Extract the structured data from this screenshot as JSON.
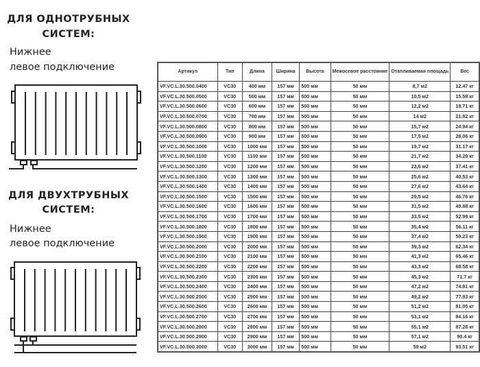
{
  "sections": [
    {
      "title_line1": "ДЛЯ ОДНОТРУБНЫХ",
      "title_line2": "СИСТЕМ:",
      "sub_line1": "Нижнее",
      "sub_line2": "левое подключение"
    },
    {
      "title_line1": "ДЛЯ ДВУХТРУБНЫХ",
      "title_line2": "СИСТЕМ:",
      "sub_line1": "Нижнее",
      "sub_line2": "левое подключение"
    }
  ],
  "table": {
    "headers": [
      "Артикул",
      "Тип",
      "Длина",
      "Ширина",
      "Высота",
      "Межосевое расстояние",
      "Отапливаемая площадь",
      "Вес"
    ],
    "rows": [
      [
        "VF.VC.L.30.500.0400",
        "VC30",
        "400 мм",
        "157 мм",
        "500 мм",
        "50 мм",
        "8,7 м2",
        "12.47 кг"
      ],
      [
        "VF.VC.L.30.500.0500",
        "VC30",
        "500 мм",
        "157 мм",
        "500 мм",
        "50 мм",
        "10,5 м2",
        "15.59 кг"
      ],
      [
        "VF.VC.L.30.500.0600",
        "VC30",
        "600 мм",
        "157 мм",
        "500 мм",
        "50 мм",
        "12,2 м2",
        "18.71 кг"
      ],
      [
        "VF.VC.L.30.500.0700",
        "VC30",
        "700 мм",
        "157 мм",
        "500 мм",
        "50 мм",
        "14 м2",
        "21.82 кг"
      ],
      [
        "VF.VC.L.30.500.0800",
        "VC30",
        "800 мм",
        "157 мм",
        "500 мм",
        "50 мм",
        "15,7 м2",
        "24.94 кг"
      ],
      [
        "VF.VC.L.30.500.0900",
        "VC30",
        "900 мм",
        "157 мм",
        "500 мм",
        "50 мм",
        "17,5 м2",
        "28.06 кг"
      ],
      [
        "VF.VC.L.30.500.1000",
        "VC30",
        "1000 мм",
        "157 мм",
        "500 мм",
        "50 мм",
        "19,7 м2",
        "31.17 кг"
      ],
      [
        "VF.VC.L.30.500.1100",
        "VC30",
        "1100 мм",
        "157 мм",
        "500 мм",
        "50 мм",
        "21,7 м2",
        "34.29 кг"
      ],
      [
        "VF.VC.L.30.500.1200",
        "VC30",
        "1200 мм",
        "157 мм",
        "500 мм",
        "50 мм",
        "23,6 м2",
        "37.41 кг"
      ],
      [
        "VF.VC.L.30.500.1300",
        "VC30",
        "1300 мм",
        "157 мм",
        "500 мм",
        "50 мм",
        "25,6 м2",
        "40.53 кг"
      ],
      [
        "VF.VC.L.30.500.1400",
        "VC30",
        "1400 мм",
        "157 мм",
        "500 мм",
        "50 мм",
        "27,6 м2",
        "43.64 кг"
      ],
      [
        "VF.VC.L.30.500.1500",
        "VC30",
        "1500 мм",
        "157 мм",
        "500 мм",
        "50 мм",
        "29,5 м2",
        "46.76 кг"
      ],
      [
        "VF.VC.L.30.500.1600",
        "VC30",
        "1600 мм",
        "157 мм",
        "500 мм",
        "50 мм",
        "31,5 м2",
        "49.88 кг"
      ],
      [
        "VF.VC.L.30.500.1700",
        "VC30",
        "1700 мм",
        "157 мм",
        "500 мм",
        "50 мм",
        "33,5 м2",
        "52.99 кг"
      ],
      [
        "VF.VC.L.30.500.1800",
        "VC30",
        "1800 мм",
        "157 мм",
        "500 мм",
        "50 мм",
        "35,4 м2",
        "56.11 кг"
      ],
      [
        "VF.VC.L.30.500.1900",
        "VC30",
        "1900 мм",
        "157 мм",
        "500 мм",
        "50 мм",
        "37,4 м2",
        "59.23 кг"
      ],
      [
        "VF.VC.L.30.500.2000",
        "VC30",
        "2000 мм",
        "157 мм",
        "500 мм",
        "50 мм",
        "39,3 м2",
        "62.34 кг"
      ],
      [
        "VF.VC.L.30.500.2100",
        "VC30",
        "2100 мм",
        "157 мм",
        "500 мм",
        "50 мм",
        "41,3 м2",
        "65.46 кг"
      ],
      [
        "VF.VC.L.30.500.2200",
        "VC30",
        "2200 мм",
        "157 мм",
        "500 мм",
        "50 мм",
        "43,3 м2",
        "68.58 кг"
      ],
      [
        "VF.VC.L.30.500.2300",
        "VC30",
        "2300 мм",
        "157 мм",
        "500 мм",
        "50 мм",
        "45,3 м2",
        "71.7 кг"
      ],
      [
        "VF.VC.L.30.500.2400",
        "VC30",
        "2400 мм",
        "157 мм",
        "500 мм",
        "50 мм",
        "47,2 м2",
        "74.81 кг"
      ],
      [
        "VF.VC.L.30.500.2500",
        "VC30",
        "2500 мм",
        "157 мм",
        "500 мм",
        "50 мм",
        "49,2 м2",
        "77.93 кг"
      ],
      [
        "VF.VC.L.30.500.2600",
        "VC30",
        "2600 мм",
        "157 мм",
        "500 мм",
        "50 мм",
        "51,2 м2",
        "81.05 кг"
      ],
      [
        "VF.VC.L.30.500.2700",
        "VC30",
        "2700 мм",
        "157 мм",
        "500 мм",
        "50 мм",
        "53,1 м2",
        "84.16 кг"
      ],
      [
        "VF.VC.L.30.500.2800",
        "VC30",
        "2800 мм",
        "157 мм",
        "500 мм",
        "50 мм",
        "55,1 м2",
        "87.28 кг"
      ],
      [
        "VF.VC.L.30.500.2900",
        "VC30",
        "2900 мм",
        "157 мм",
        "500 мм",
        "50 мм",
        "57,1 м2",
        "90.4 кг"
      ],
      [
        "VF.VC.L.30.500.3000",
        "VC30",
        "3000 мм",
        "157 мм",
        "500 мм",
        "50 мм",
        "59 м2",
        "93.51 кг"
      ]
    ]
  },
  "icons": {
    "single_pipe": "radiator-single-pipe-icon",
    "two_pipe": "radiator-two-pipe-icon"
  }
}
